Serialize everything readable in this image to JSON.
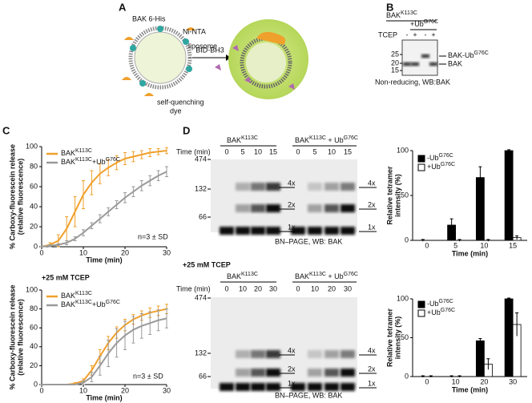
{
  "panel_labels": [
    "A",
    "B",
    "C",
    "D"
  ],
  "diagram": {
    "his_tag": "BAK 6-His",
    "nta": "Ni-NTA",
    "liposome": "liposome",
    "dye": [
      "self-quenching",
      "dye"
    ],
    "arrow": "BID-BH3"
  },
  "blot": {
    "header1": [
      "BAK",
      "K113C"
    ],
    "header2": [
      "+Ub",
      "G76C"
    ],
    "row_label": "TCEP",
    "signs": [
      "-",
      "+",
      "-",
      "+"
    ],
    "markers": [
      "25",
      "20",
      "15"
    ],
    "bands": [
      [
        "BAK-Ub",
        "G76C"
      ],
      [
        "BAK"
      ]
    ],
    "footer": "Non-reducing, WB:BAK"
  },
  "gels": [
    {
      "groups": [
        [
          "BAK",
          "K113C"
        ],
        [
          "BAK",
          "K113C",
          " + Ub",
          "G76C"
        ]
      ],
      "time_label": "Time (min)",
      "lanes": [
        "0",
        "5",
        "10",
        "15",
        "0",
        "5",
        "10",
        "15"
      ],
      "markers": [
        "474",
        "132",
        "66"
      ],
      "band_labels": [
        [
          "4x",
          "2x",
          "1x"
        ],
        [
          "4x",
          "2x",
          "1x"
        ]
      ],
      "footer": "BN–PAGE, WB: BAK"
    },
    {
      "condition": "+25 mM TCEP",
      "groups": [
        [
          "BAK",
          "K113C"
        ],
        [
          "BAK",
          "K113C",
          " + Ub",
          "G76C"
        ]
      ],
      "time_label": "Time (min)",
      "lanes": [
        "0",
        "10",
        "20",
        "30",
        "0",
        "10",
        "20",
        "30"
      ],
      "markers": [
        "474",
        "132",
        "66"
      ],
      "band_labels": [
        [
          "4x",
          "2x",
          "1x"
        ],
        [
          "4x",
          "2x",
          "1x"
        ]
      ],
      "footer": "BN–PAGE, WB: BAK"
    }
  ],
  "chart_data": [
    {
      "type": "line",
      "x_label": "Time (min)",
      "y_label": [
        "% Carboxy-fluorescein release",
        "(relative fluorescence)"
      ],
      "annotation": "n=3 ± SD",
      "x": [
        0,
        2,
        4,
        6,
        8,
        10,
        12,
        14,
        16,
        18,
        20,
        22,
        24,
        26,
        28,
        30
      ],
      "xlim": [
        0,
        30
      ],
      "xticks": [
        0,
        10,
        20,
        30
      ],
      "ylim": [
        0,
        100
      ],
      "yticks": [
        0,
        20,
        40,
        60,
        80,
        100
      ],
      "series": [
        {
          "name": [
            "BAK",
            "K113C"
          ],
          "color": "#f0a02c",
          "values": [
            0,
            2,
            6,
            18,
            35,
            52,
            64,
            73,
            79,
            84,
            88,
            90,
            92,
            94,
            95,
            96
          ],
          "errors": [
            0,
            2,
            6,
            12,
            15,
            14,
            12,
            10,
            8,
            7,
            6,
            5,
            4,
            4,
            3,
            3
          ]
        },
        {
          "name": [
            "BAK",
            "K113C",
            "+Ub",
            "G76C"
          ],
          "color": "#9a9a9a",
          "values": [
            0,
            1,
            2,
            4,
            8,
            14,
            21,
            28,
            35,
            42,
            49,
            55,
            61,
            66,
            71,
            75
          ],
          "errors": [
            0,
            1,
            1,
            2,
            2,
            3,
            3,
            4,
            4,
            4,
            5,
            5,
            5,
            5,
            5,
            5
          ]
        }
      ]
    },
    {
      "type": "line",
      "title": "+25 mM TCEP",
      "x_label": "Time (min)",
      "y_label": [
        "% Carboxy-fluorescein release",
        "(relative fluorescence)"
      ],
      "annotation": "n=3 ± SD",
      "x": [
        0,
        2,
        4,
        6,
        8,
        10,
        12,
        14,
        16,
        18,
        20,
        22,
        24,
        26,
        28,
        30
      ],
      "xlim": [
        0,
        30
      ],
      "xticks": [
        0,
        10,
        20,
        30
      ],
      "ylim": [
        0,
        100
      ],
      "yticks": [
        0,
        20,
        40,
        60,
        80,
        100
      ],
      "series": [
        {
          "name": [
            "BAK",
            "K113C"
          ],
          "color": "#f0a02c",
          "values": [
            0,
            0,
            0,
            0,
            1,
            4,
            15,
            30,
            44,
            55,
            63,
            69,
            73,
            76,
            78,
            80
          ],
          "errors": [
            0,
            0,
            0,
            0,
            1,
            2,
            5,
            7,
            7,
            6,
            6,
            5,
            5,
            5,
            5,
            5
          ]
        },
        {
          "name": [
            "BAK",
            "K113C",
            "+Ub",
            "G76C"
          ],
          "color": "#9a9a9a",
          "values": [
            0,
            0,
            0,
            0,
            0,
            2,
            8,
            20,
            33,
            44,
            52,
            58,
            62,
            65,
            68,
            70
          ],
          "errors": [
            0,
            0,
            0,
            0,
            0,
            2,
            5,
            10,
            14,
            15,
            15,
            14,
            13,
            12,
            11,
            10
          ]
        }
      ]
    },
    {
      "type": "bar",
      "x_label": "Time (min)",
      "y_label": [
        "Relative tetramer",
        "intensity (%)"
      ],
      "categories": [
        "0",
        "5",
        "10",
        "15"
      ],
      "ylim": [
        0,
        100
      ],
      "yticks": [
        0,
        50,
        100
      ],
      "series": [
        {
          "name": [
            "-Ub",
            "G76C"
          ],
          "color": "#000000",
          "values": [
            0,
            17,
            70,
            100
          ],
          "errors": [
            1,
            7,
            12,
            1
          ]
        },
        {
          "name": [
            "+Ub",
            "G76C"
          ],
          "color": "#ffffff",
          "values": [
            0,
            0,
            0,
            3
          ],
          "errors": [
            0,
            1,
            1,
            2
          ]
        }
      ]
    },
    {
      "type": "bar",
      "x_label": "Time (min)",
      "y_label": [
        "Relative tetramer",
        "intensity (%)"
      ],
      "categories": [
        "0",
        "10",
        "20",
        "30"
      ],
      "ylim": [
        0,
        100
      ],
      "yticks": [
        0,
        50,
        100
      ],
      "series": [
        {
          "name": [
            "-Ub",
            "G76C"
          ],
          "color": "#000000",
          "values": [
            0,
            0,
            46,
            100
          ],
          "errors": [
            1,
            1,
            3,
            1
          ]
        },
        {
          "name": [
            "+Ub",
            "G76C"
          ],
          "color": "#ffffff",
          "values": [
            0,
            0,
            16,
            67
          ],
          "errors": [
            1,
            1,
            7,
            15
          ]
        }
      ]
    }
  ]
}
